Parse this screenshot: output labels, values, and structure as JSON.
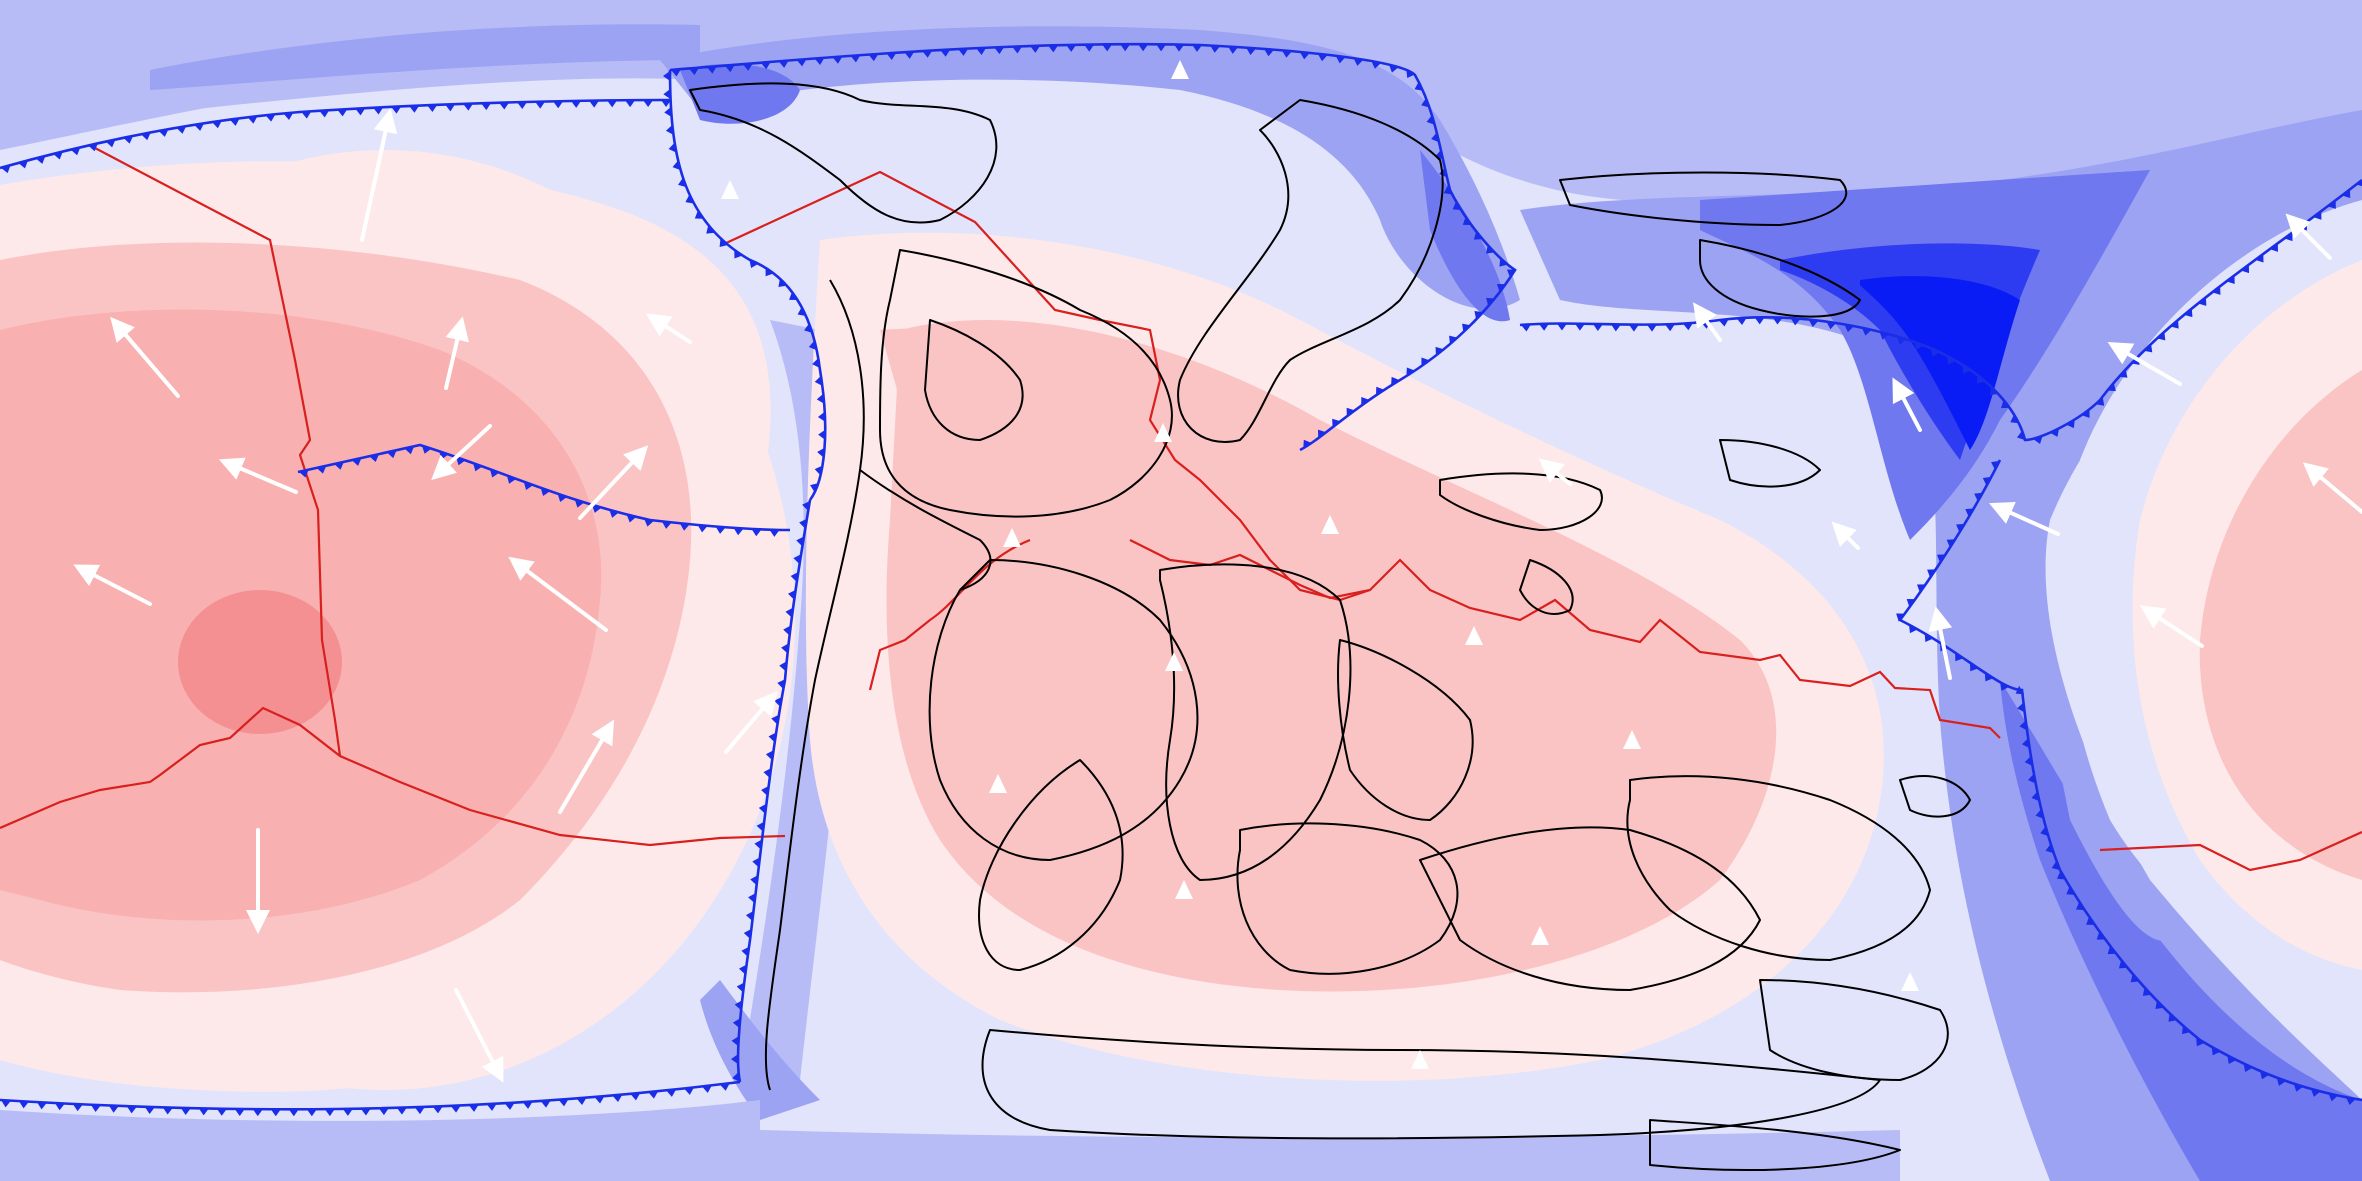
{
  "map": {
    "projection": "equirectangular",
    "colors": {
      "background_blue": "#b8bcf6",
      "blue_light": "#e2e4fb",
      "blue_mid": "#9da3f3",
      "blue_strong": "#6f78ef",
      "blue_deep": "#2d3cf0",
      "blue_core": "#0a1cf5",
      "red_light": "#fde9ea",
      "red_mid": "#fbc4c4",
      "red_strong": "#f7a9a9",
      "red_core": "#f38a8d",
      "subduction_line": "#1a2ee8",
      "ridge_line": "#d8201e",
      "coastline": "#000000",
      "velocity_arrow": "#ffffff"
    },
    "legend": null,
    "labels": []
  }
}
